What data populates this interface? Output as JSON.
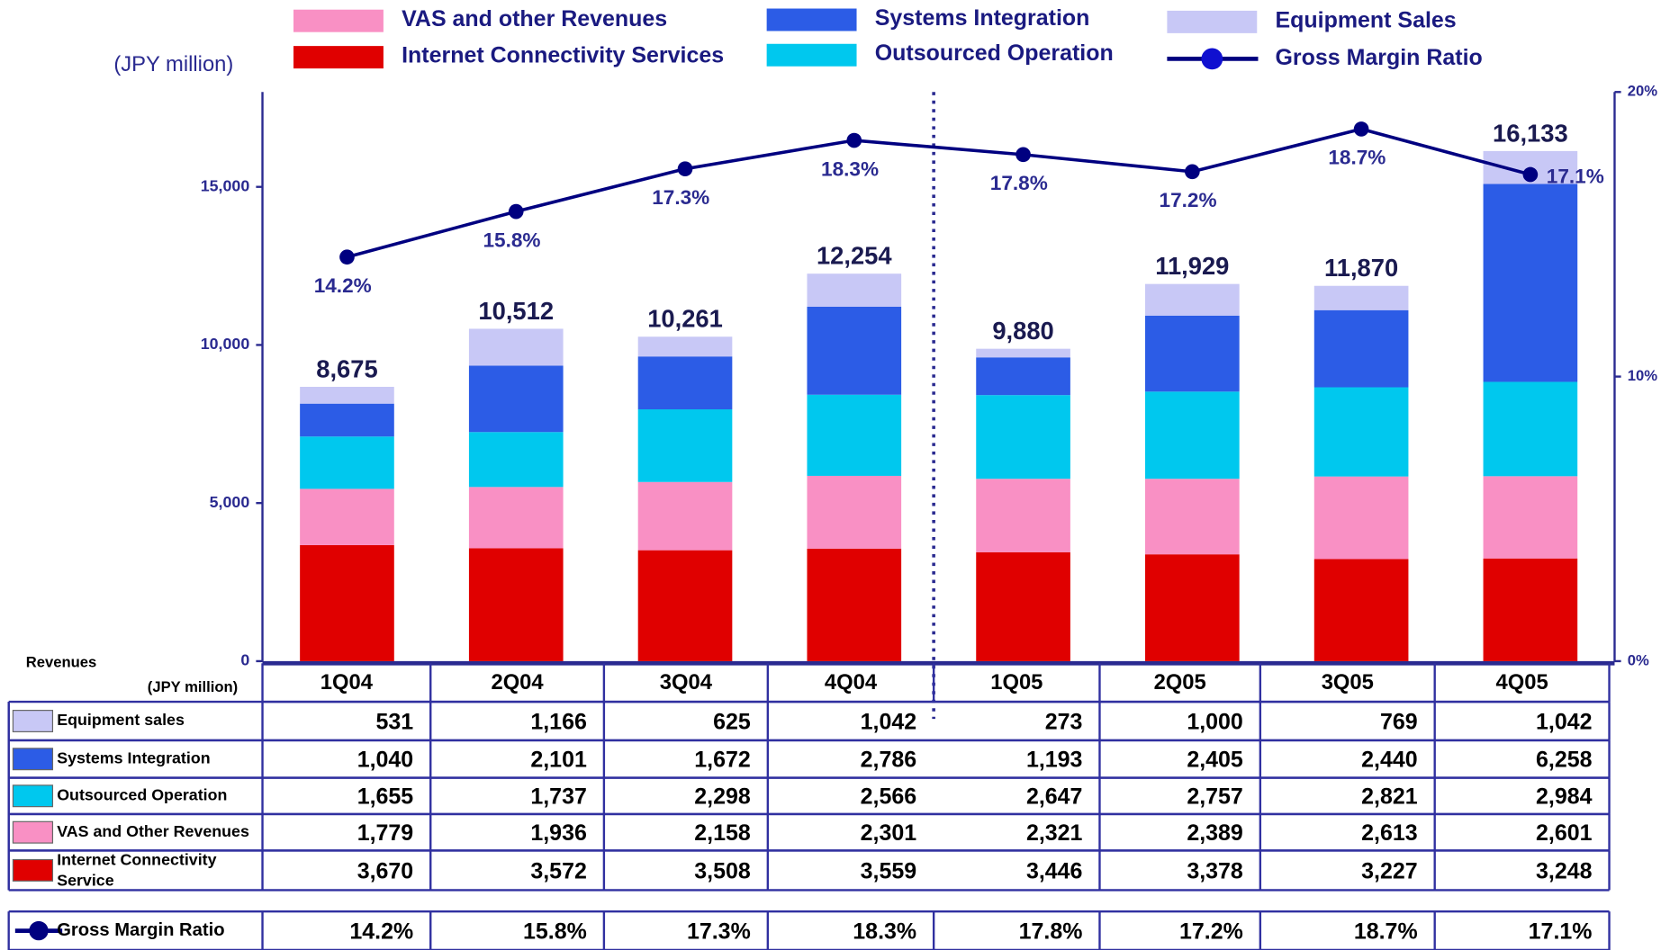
{
  "chart_data": {
    "type": "stacked_bar_line",
    "unit_label": "(JPY million)",
    "categories": [
      "1Q04",
      "2Q04",
      "3Q04",
      "4Q04",
      "1Q05",
      "2Q05",
      "3Q05",
      "4Q05"
    ],
    "series": [
      {
        "name": "Internet Connectivity Services",
        "color": "#e00000",
        "values": [
          3670,
          3572,
          3508,
          3559,
          3446,
          3378,
          3227,
          3248
        ],
        "value_labels": [
          "3,670",
          "3,572",
          "3,508",
          "3,559",
          "3,446",
          "3,378",
          "3,227",
          "3,248"
        ]
      },
      {
        "name": "VAS and other Revenues",
        "color": "#f990c4",
        "values": [
          1779,
          1936,
          2158,
          2301,
          2321,
          2389,
          2613,
          2601
        ],
        "value_labels": [
          "1,779",
          "1,936",
          "2,158",
          "2,301",
          "2,321",
          "2,389",
          "2,613",
          "2,601"
        ]
      },
      {
        "name": "Outsourced Operation",
        "color": "#00c8ee",
        "values": [
          1655,
          1737,
          2298,
          2566,
          2647,
          2757,
          2821,
          2984
        ],
        "value_labels": [
          "1,655",
          "1,737",
          "2,298",
          "2,566",
          "2,647",
          "2,757",
          "2,821",
          "2,984"
        ]
      },
      {
        "name": "Systems Integration",
        "color": "#2c5ce6",
        "values": [
          1040,
          2101,
          1672,
          2786,
          1193,
          2405,
          2440,
          6258
        ],
        "value_labels": [
          "1,040",
          "2,101",
          "1,672",
          "2,786",
          "1,193",
          "2,405",
          "2,440",
          "6,258"
        ]
      },
      {
        "name": "Equipment Sales",
        "color": "#c8c8f6",
        "values": [
          531,
          1166,
          625,
          1042,
          273,
          1000,
          769,
          1042
        ],
        "value_labels": [
          "531",
          "1,166",
          "625",
          "1,042",
          "273",
          "1,000",
          "769",
          "1,042"
        ]
      },
      {
        "name": "Gross Margin Ratio",
        "color": "#000080",
        "axis": "y2",
        "values": [
          14.2,
          15.8,
          17.3,
          18.3,
          17.8,
          17.2,
          18.7,
          17.1
        ],
        "value_labels": [
          "14.2%",
          "15.8%",
          "17.3%",
          "18.3%",
          "17.8%",
          "17.2%",
          "18.7%",
          "17.1%"
        ]
      }
    ],
    "totals": {
      "values": [
        8675,
        10512,
        10261,
        12254,
        9880,
        11929,
        11870,
        16133
      ],
      "value_labels": [
        "8,675",
        "10,512",
        "10,261",
        "12,254",
        "9,880",
        "11,929",
        "11,870",
        "16,133"
      ]
    },
    "ylim": [
      0,
      18000
    ],
    "yticks": [
      0,
      {
        "value": 5000,
        "label": "5,000"
      },
      {
        "value": 10000,
        "label": "10,000"
      },
      {
        "value": 15000,
        "label": "15,000"
      }
    ],
    "y2lim": [
      0,
      20
    ],
    "y2ticks": [
      {
        "value": 0,
        "label": "0%"
      },
      {
        "value": 10,
        "label": "10%"
      },
      {
        "value": 20,
        "label": "20%"
      }
    ],
    "table": {
      "title": "Revenues",
      "unit_label": "(JPY million)",
      "row_labels": [
        "Equipment sales",
        "Systems Integration",
        "Outsourced Operation",
        "VAS and Other Revenues",
        "Internet Connectivity Service",
        "Gross Margin Ratio"
      ]
    }
  }
}
